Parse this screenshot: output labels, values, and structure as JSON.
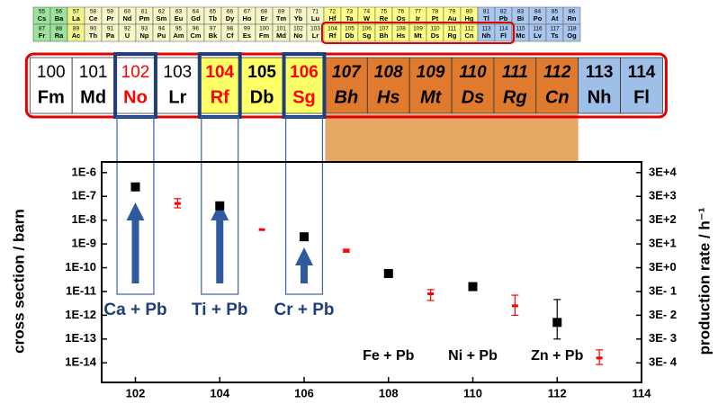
{
  "mini_table": {
    "rows": [
      {
        "numbers": [
          55,
          56,
          57,
          58,
          59,
          60,
          61,
          62,
          63,
          64,
          65,
          66,
          67,
          68,
          69,
          70,
          71,
          72,
          73,
          74,
          75,
          76,
          77,
          78,
          79,
          80,
          81,
          82,
          83,
          84,
          85,
          86
        ],
        "symbols": [
          "Cs",
          "Ba",
          "La",
          "Ce",
          "Pr",
          "Nd",
          "Pm",
          "Sm",
          "Eu",
          "Gd",
          "Tb",
          "Dy",
          "Ho",
          "Er",
          "Tm",
          "Yb",
          "Lu",
          "Hf",
          "Ta",
          "W",
          "Re",
          "Os",
          "Ir",
          "Pt",
          "Au",
          "Hg",
          "Tl",
          "Pb",
          "Bi",
          "Po",
          "At",
          "Rn"
        ]
      },
      {
        "numbers": [
          87,
          88,
          89,
          90,
          91,
          92,
          93,
          94,
          95,
          96,
          97,
          98,
          99,
          100,
          101,
          102,
          103,
          104,
          105,
          106,
          107,
          108,
          109,
          110,
          111,
          112,
          113,
          114,
          115,
          116,
          117,
          118
        ],
        "symbols": [
          "Fr",
          "Ra",
          "Ac",
          "Th",
          "Pa",
          "U",
          "Np",
          "Pu",
          "Am",
          "Cm",
          "Bk",
          "Cf",
          "Es",
          "Fm",
          "Md",
          "No",
          "Lr",
          "Rf",
          "Db",
          "Sg",
          "Bh",
          "Hs",
          "Mt",
          "Ds",
          "Rg",
          "Cn",
          "Nh",
          "Fl",
          "Mc",
          "Lv",
          "Ts",
          "Og"
        ]
      }
    ]
  },
  "element_strip": {
    "numbers": [
      100,
      101,
      102,
      103,
      104,
      105,
      106,
      107,
      108,
      109,
      110,
      111,
      112,
      113,
      114
    ],
    "symbols": [
      "Fm",
      "Md",
      "No",
      "Lr",
      "Rf",
      "Db",
      "Sg",
      "Bh",
      "Hs",
      "Mt",
      "Ds",
      "Rg",
      "Cn",
      "Nh",
      "Fl"
    ],
    "cell_colors": [
      "#ffffff",
      "#ffffff",
      "#ffffff",
      "#ffffff",
      "#ffff66",
      "#ffff66",
      "#ffff66",
      "#e07a2e",
      "#e07a2e",
      "#e07a2e",
      "#e07a2e",
      "#e07a2e",
      "#e07a2e",
      "#9dbfe8",
      "#9dbfe8"
    ],
    "text_colors": [
      "#000000",
      "#000000",
      "#ff0000",
      "#000000",
      "#ff0000",
      "#000000",
      "#ff0000",
      "#000000",
      "#000000",
      "#000000",
      "#000000",
      "#000000",
      "#000000",
      "#000000",
      "#000000"
    ]
  },
  "chart_data": {
    "type": "scatter",
    "ylabel": "cross section / barn",
    "y2label": "production rate / h⁻¹",
    "log_y": true,
    "xlim": [
      101.2,
      114
    ],
    "xticks": [
      102,
      104,
      106,
      108,
      110,
      112,
      114
    ],
    "ylim": [
      1.5e-15,
      2.8e-06
    ],
    "yticks": [
      {
        "value": 1e-06,
        "label": "1E-6"
      },
      {
        "value": 1e-07,
        "label": "1E-7"
      },
      {
        "value": 1e-08,
        "label": "1E-8"
      },
      {
        "value": 1e-09,
        "label": "1E-9"
      },
      {
        "value": 1e-10,
        "label": "1E-10"
      },
      {
        "value": 1e-11,
        "label": "1E-11"
      },
      {
        "value": 1e-12,
        "label": "1E-12"
      },
      {
        "value": 1e-13,
        "label": "1E-13"
      },
      {
        "value": 1e-14,
        "label": "1E-14"
      }
    ],
    "y2lim": [
      4.5e-05,
      84000.0
    ],
    "y2ticks": [
      {
        "value": 30000.0,
        "label": "3E+4"
      },
      {
        "value": 3000.0,
        "label": "3E+3"
      },
      {
        "value": 300.0,
        "label": "3E+2"
      },
      {
        "value": 30.0,
        "label": "3E+1"
      },
      {
        "value": 3,
        "label": "3E+0"
      },
      {
        "value": 0.3,
        "label": "3E- 1"
      },
      {
        "value": 0.03,
        "label": "3E- 2"
      },
      {
        "value": 0.003,
        "label": "3E- 3"
      },
      {
        "value": 0.0003,
        "label": "3E- 4"
      }
    ],
    "series": [
      {
        "color": "#000000",
        "marker": "square",
        "x": [
          102,
          104,
          106,
          108,
          110,
          112
        ],
        "values": [
          2.5e-07,
          4e-08,
          2e-09,
          5.7e-11,
          1.6e-11,
          5e-13
        ],
        "low": [
          null,
          null,
          null,
          null,
          null,
          1e-13
        ],
        "high": [
          null,
          null,
          null,
          null,
          null,
          4.6e-12
        ]
      },
      {
        "color": "#ff0000",
        "marker": "bar",
        "x": [
          103,
          105,
          107,
          109,
          111,
          113
        ],
        "values": [
          5e-08,
          4e-09,
          5e-10,
          8e-12,
          2.5e-12,
          1.6e-14
        ],
        "low": [
          3.3e-08,
          null,
          4.5e-10,
          4.2e-12,
          1e-12,
          8.5e-15
        ],
        "high": [
          8e-08,
          null,
          6e-10,
          1.2e-11,
          7e-12,
          3.5e-14
        ]
      }
    ],
    "annotations": [
      "Ca + Pb",
      "Ti + Pb",
      "Cr + Pb",
      "Fe + Pb",
      "Ni + Pb",
      "Zn + Pb"
    ]
  }
}
